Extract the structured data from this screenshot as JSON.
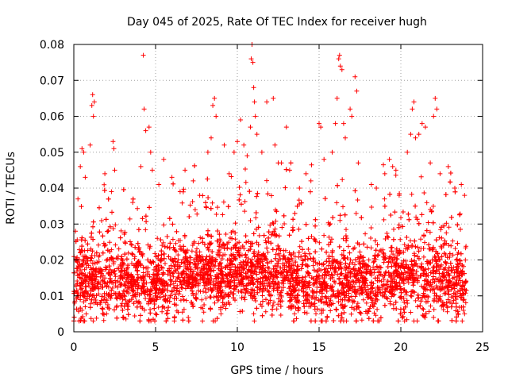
{
  "chart_data": {
    "type": "scatter",
    "title": "Day 045 of 2025, Rate Of TEC Index for receiver hugh",
    "xlabel": "GPS time / hours",
    "ylabel": "ROTI / TECUs",
    "xlim": [
      0,
      25
    ],
    "ylim": [
      0,
      0.08
    ],
    "x_ticks": [
      0,
      5,
      10,
      15,
      20,
      25
    ],
    "y_ticks": [
      0,
      0.01,
      0.02,
      0.03,
      0.04,
      0.05,
      0.06,
      0.07,
      0.08
    ],
    "x_tick_labels": [
      "0",
      "5",
      "10",
      "15",
      "20",
      "25"
    ],
    "y_tick_labels": [
      "0",
      "0.01",
      "0.02",
      "0.03",
      "0.04",
      "0.05",
      "0.06",
      "0.07",
      "0.08"
    ],
    "grid": true,
    "marker": "+",
    "marker_color": "#ff0000",
    "x_data_range": [
      0,
      24
    ],
    "series": [
      {
        "name": "ROTI",
        "note": "Dense band of measurements mostly between 0.005 and 0.03 TECU/min across 0-24 h; notable outliers listed below",
        "points": [
          [
            0.1,
            0.028
          ],
          [
            0.25,
            0.037
          ],
          [
            0.4,
            0.046
          ],
          [
            0.5,
            0.051
          ],
          [
            0.6,
            0.05
          ],
          [
            0.7,
            0.043
          ],
          [
            1.0,
            0.052
          ],
          [
            1.1,
            0.063
          ],
          [
            1.15,
            0.066
          ],
          [
            1.2,
            0.06
          ],
          [
            1.25,
            0.064
          ],
          [
            1.9,
            0.044
          ],
          [
            2.3,
            0.039
          ],
          [
            2.4,
            0.053
          ],
          [
            2.45,
            0.051
          ],
          [
            2.5,
            0.045
          ],
          [
            3.6,
            0.036
          ],
          [
            4.1,
            0.046
          ],
          [
            4.25,
            0.077
          ],
          [
            4.3,
            0.062
          ],
          [
            4.4,
            0.056
          ],
          [
            4.6,
            0.057
          ],
          [
            4.7,
            0.05
          ],
          [
            4.8,
            0.045
          ],
          [
            5.2,
            0.041
          ],
          [
            5.5,
            0.048
          ],
          [
            6.0,
            0.043
          ],
          [
            6.5,
            0.039
          ],
          [
            6.8,
            0.045
          ],
          [
            7.3,
            0.042
          ],
          [
            7.7,
            0.038
          ],
          [
            8.2,
            0.05
          ],
          [
            8.4,
            0.054
          ],
          [
            8.5,
            0.063
          ],
          [
            8.6,
            0.065
          ],
          [
            8.7,
            0.06
          ],
          [
            9.2,
            0.052
          ],
          [
            9.5,
            0.044
          ],
          [
            9.8,
            0.05
          ],
          [
            10.0,
            0.053
          ],
          [
            10.2,
            0.059
          ],
          [
            10.4,
            0.052
          ],
          [
            10.6,
            0.049
          ],
          [
            10.8,
            0.057
          ],
          [
            10.85,
            0.076
          ],
          [
            10.9,
            0.08
          ],
          [
            10.95,
            0.075
          ],
          [
            11.0,
            0.068
          ],
          [
            11.05,
            0.064
          ],
          [
            11.1,
            0.06
          ],
          [
            11.2,
            0.055
          ],
          [
            11.5,
            0.05
          ],
          [
            11.8,
            0.064
          ],
          [
            12.2,
            0.065
          ],
          [
            12.3,
            0.052
          ],
          [
            12.5,
            0.047
          ],
          [
            13.0,
            0.057
          ],
          [
            13.2,
            0.045
          ],
          [
            13.8,
            0.04
          ],
          [
            14.2,
            0.044
          ],
          [
            14.5,
            0.042
          ],
          [
            15.0,
            0.058
          ],
          [
            15.1,
            0.057
          ],
          [
            15.3,
            0.048
          ],
          [
            15.8,
            0.05
          ],
          [
            16.0,
            0.058
          ],
          [
            16.1,
            0.065
          ],
          [
            16.2,
            0.076
          ],
          [
            16.25,
            0.077
          ],
          [
            16.3,
            0.074
          ],
          [
            16.4,
            0.073
          ],
          [
            16.5,
            0.058
          ],
          [
            16.6,
            0.054
          ],
          [
            16.9,
            0.062
          ],
          [
            17.0,
            0.06
          ],
          [
            17.2,
            0.071
          ],
          [
            17.3,
            0.067
          ],
          [
            17.4,
            0.047
          ],
          [
            18.2,
            0.041
          ],
          [
            18.5,
            0.04
          ],
          [
            19.0,
            0.037
          ],
          [
            19.3,
            0.048
          ],
          [
            19.5,
            0.046
          ],
          [
            19.7,
            0.045
          ],
          [
            19.9,
            0.038
          ],
          [
            20.4,
            0.05
          ],
          [
            20.6,
            0.055
          ],
          [
            20.7,
            0.062
          ],
          [
            20.8,
            0.064
          ],
          [
            20.9,
            0.054
          ],
          [
            21.1,
            0.055
          ],
          [
            21.3,
            0.058
          ],
          [
            21.5,
            0.057
          ],
          [
            21.8,
            0.047
          ],
          [
            22.0,
            0.06
          ],
          [
            22.1,
            0.065
          ],
          [
            22.2,
            0.062
          ],
          [
            22.4,
            0.044
          ],
          [
            22.9,
            0.046
          ],
          [
            23.3,
            0.04
          ],
          [
            23.7,
            0.041
          ],
          [
            23.9,
            0.038
          ],
          [
            0.05,
            0.008
          ],
          [
            0.5,
            0.006
          ],
          [
            2.0,
            0.005
          ],
          [
            3.0,
            0.004
          ],
          [
            5.0,
            0.005
          ],
          [
            7.0,
            0.004
          ],
          [
            9.0,
            0.005
          ],
          [
            11.0,
            0.005
          ],
          [
            13.5,
            0.005
          ],
          [
            15.5,
            0.004
          ],
          [
            16.5,
            0.003
          ],
          [
            18.0,
            0.006
          ],
          [
            20.0,
            0.005
          ],
          [
            20.8,
            0.003
          ],
          [
            21.0,
            0.003
          ],
          [
            22.0,
            0.004
          ],
          [
            23.5,
            0.005
          ],
          [
            23.9,
            0.005
          ]
        ]
      }
    ]
  }
}
